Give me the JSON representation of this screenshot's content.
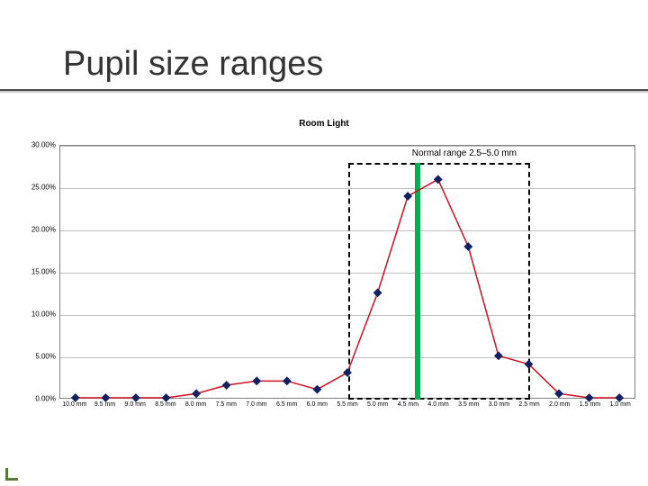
{
  "title": "Pupil size ranges",
  "chart": {
    "type": "line",
    "subtitle": "Room Light",
    "annotation": "Normal range 2.5–5.0 mm",
    "series_color": "#d01020",
    "marker_color": "#102060",
    "marker_style": "diamond",
    "marker_size": 7,
    "line_width": 1.5,
    "background_color": "#ffffff",
    "plot_border_color": "#808080",
    "grid_color": "#c0c0c0",
    "ylim": [
      0,
      30
    ],
    "ytick_step": 5,
    "ylabels": [
      "0.00%",
      "5.00%",
      "10.00%",
      "15.00%",
      "20.00%",
      "25.00%",
      "30.00%"
    ],
    "categories": [
      "10.0 mm",
      "9.5 mm",
      "9.0 mm",
      "8.5 mm",
      "8.0 mm",
      "7.5 mm",
      "7.0 mm",
      "6.5 mm",
      "6.0 mm",
      "5.5 mm",
      "5.0 mm",
      "4.5 mm",
      "4.0 mm",
      "3.5 mm",
      "3.0 mm",
      "2.5 mm",
      "2.0 mm",
      "1.5 mm",
      "1.0 mm"
    ],
    "values": [
      0.0,
      0.0,
      0.0,
      0.0,
      0.5,
      1.5,
      2.0,
      2.0,
      1.0,
      3.0,
      12.5,
      24.0,
      26.0,
      18.0,
      5.0,
      4.0,
      0.5,
      0.0,
      0.0
    ],
    "normal_range": {
      "left_index": 9,
      "right_index": 15,
      "y_top_pct": 28,
      "box_color": "#000000"
    },
    "green_marker": {
      "index": 11.3,
      "color": "#00b050",
      "width": 6
    }
  },
  "title_fontsize": 38,
  "title_color": "#333333",
  "subtitle_fontsize": 10,
  "label_fontsize": 8
}
